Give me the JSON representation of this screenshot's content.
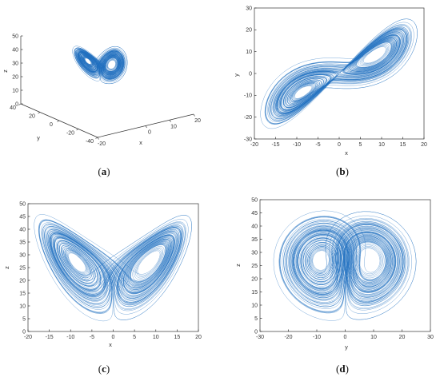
{
  "colors": {
    "trace": "#1f6fbf",
    "axis": "#333333",
    "background": "#ffffff"
  },
  "chart_data": [
    {
      "type": "line",
      "panel": "a",
      "caption": {
        "open": "(",
        "letter": "a",
        "close": ")"
      },
      "projection": "3d",
      "xlabel": "x",
      "ylabel": "y",
      "zlabel": "z",
      "xlim": [
        -20,
        20
      ],
      "ylim": [
        -40,
        40
      ],
      "zlim": [
        0,
        50
      ],
      "x_ticks": [
        -20,
        0,
        10,
        20
      ],
      "y_ticks": [
        -40,
        -20,
        0,
        20,
        40
      ],
      "z_ticks": [
        0,
        10,
        20,
        30,
        40,
        50
      ],
      "x_tick_labels": [
        "-20",
        "0",
        "10",
        "20"
      ],
      "y_tick_labels": [
        "-40",
        "-20",
        "0",
        "20",
        "40"
      ],
      "z_tick_labels": [
        "0",
        "10",
        "20",
        "30",
        "40",
        "50"
      ],
      "series": [
        {
          "source": "lorenz-like attractor",
          "dims": [
            "x",
            "y",
            "z"
          ]
        }
      ]
    },
    {
      "type": "line",
      "panel": "b",
      "caption": {
        "open": "(",
        "letter": "b",
        "close": ")"
      },
      "xlabel": "x",
      "ylabel": "y",
      "xlim": [
        -20,
        20
      ],
      "ylim": [
        -30,
        30
      ],
      "x_ticks": [
        -20,
        -15,
        -10,
        -5,
        0,
        5,
        10,
        15,
        20
      ],
      "y_ticks": [
        -30,
        -20,
        -10,
        0,
        10,
        20,
        30
      ],
      "x_tick_labels": [
        "-20",
        "-15",
        "-10",
        "-5",
        "0",
        "5",
        "10",
        "15",
        "20"
      ],
      "y_tick_labels": [
        "-30",
        "-20",
        "-10",
        "0",
        "10",
        "20",
        "30"
      ],
      "series": [
        {
          "source": "lorenz-like attractor",
          "dims": [
            "x",
            "y"
          ]
        }
      ]
    },
    {
      "type": "line",
      "panel": "c",
      "caption": {
        "open": "(",
        "letter": "c",
        "close": ")"
      },
      "xlabel": "x",
      "ylabel": "z",
      "xlim": [
        -20,
        20
      ],
      "ylim": [
        0,
        50
      ],
      "x_ticks": [
        -20,
        -15,
        -10,
        -5,
        0,
        5,
        10,
        15,
        20
      ],
      "y_ticks": [
        0,
        5,
        10,
        15,
        20,
        25,
        30,
        35,
        40,
        45,
        50
      ],
      "x_tick_labels": [
        "-20",
        "-15",
        "-10",
        "-5",
        "0",
        "5",
        "10",
        "15",
        "20"
      ],
      "y_tick_labels": [
        "0",
        "5",
        "10",
        "15",
        "20",
        "25",
        "30",
        "35",
        "40",
        "45",
        "50"
      ],
      "series": [
        {
          "source": "lorenz-like attractor",
          "dims": [
            "x",
            "z"
          ]
        }
      ]
    },
    {
      "type": "line",
      "panel": "d",
      "caption": {
        "open": "(",
        "letter": "d",
        "close": ")"
      },
      "xlabel": "y",
      "ylabel": "z",
      "xlim": [
        -30,
        30
      ],
      "ylim": [
        0,
        50
      ],
      "x_ticks": [
        -30,
        -20,
        -10,
        0,
        10,
        20,
        30
      ],
      "y_ticks": [
        0,
        5,
        10,
        15,
        20,
        25,
        30,
        35,
        40,
        45,
        50
      ],
      "x_tick_labels": [
        "-30",
        "-20",
        "-10",
        "0",
        "10",
        "20",
        "30"
      ],
      "y_tick_labels": [
        "0",
        "5",
        "10",
        "15",
        "20",
        "25",
        "30",
        "35",
        "40",
        "45",
        "50"
      ],
      "series": [
        {
          "source": "lorenz-like attractor",
          "dims": [
            "y",
            "z"
          ]
        }
      ]
    }
  ]
}
